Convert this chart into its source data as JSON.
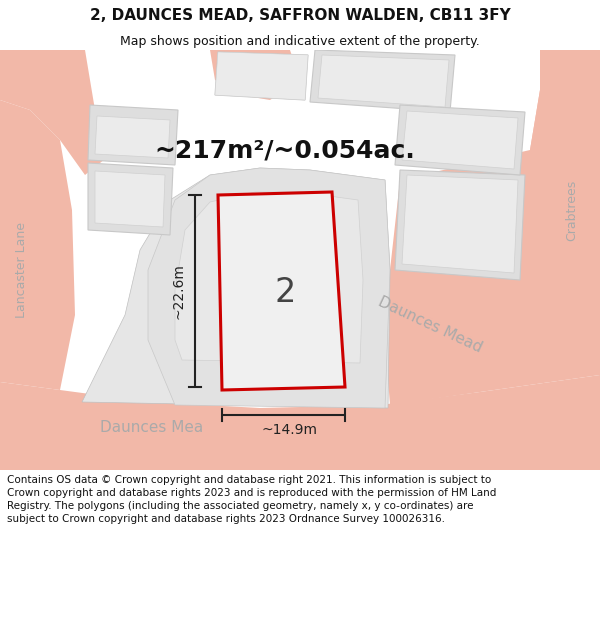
{
  "title": "2, DAUNCES MEAD, SAFFRON WALDEN, CB11 3FY",
  "subtitle": "Map shows position and indicative extent of the property.",
  "footer": "Contains OS data © Crown copyright and database right 2021. This information is subject to Crown copyright and database rights 2023 and is reproduced with the permission of HM Land Registry. The polygons (including the associated geometry, namely x, y co-ordinates) are subject to Crown copyright and database rights 2023 Ordnance Survey 100026316.",
  "area_text": "~217m²/~0.054ac.",
  "label_number": "2",
  "dim_height": "~22.6m",
  "dim_width": "~14.9m",
  "road_label_bottom_left": "Daunces Mea",
  "road_label_bottom_right": "Daunces Mead",
  "road_label_left": "Lancaster Lane",
  "road_label_tr": "Crabtrees",
  "bg_color": "#ffffff",
  "map_bg": "#efefef",
  "road_color": "#f2b8a8",
  "building_fill": "#dedede",
  "building_edge": "#c8c8c8",
  "inner_fill": "#e8e8e8",
  "plot_fill": "#f0f0f0",
  "plot_edge": "#cc0000",
  "plot_edge_width": 2.2,
  "dim_color": "#222222",
  "road_text_color": "#aaaaaa",
  "title_color": "#111111",
  "footer_color": "#111111",
  "title_fontsize": 11,
  "subtitle_fontsize": 9,
  "area_fontsize": 18,
  "label_fontsize": 24,
  "road_label_fontsize": 11,
  "side_label_fontsize": 9,
  "footer_fontsize": 7.5
}
